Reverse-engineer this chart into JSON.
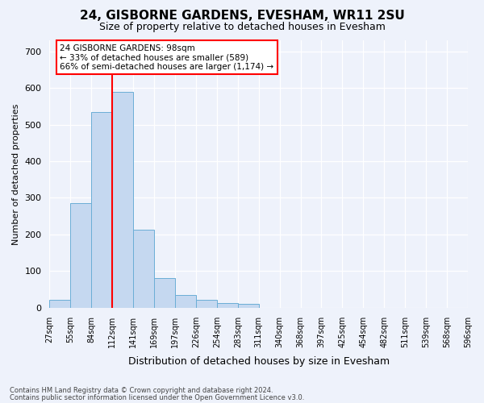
{
  "title1": "24, GISBORNE GARDENS, EVESHAM, WR11 2SU",
  "title2": "Size of property relative to detached houses in Evesham",
  "xlabel": "Distribution of detached houses by size in Evesham",
  "ylabel": "Number of detached properties",
  "bar_values": [
    22,
    285,
    535,
    590,
    212,
    80,
    35,
    22,
    12,
    10,
    0,
    0,
    0,
    0,
    0,
    0,
    0,
    0,
    0,
    0
  ],
  "categories": [
    "27sqm",
    "55sqm",
    "84sqm",
    "112sqm",
    "141sqm",
    "169sqm",
    "197sqm",
    "226sqm",
    "254sqm",
    "283sqm",
    "311sqm",
    "340sqm",
    "368sqm",
    "397sqm",
    "425sqm",
    "454sqm",
    "482sqm",
    "511sqm",
    "539sqm",
    "568sqm",
    "596sqm"
  ],
  "bar_color": "#c5d8f0",
  "bar_edge_color": "#6baed6",
  "vline_color": "red",
  "annotation_text": "24 GISBORNE GARDENS: 98sqm\n← 33% of detached houses are smaller (589)\n66% of semi-detached houses are larger (1,174) →",
  "annotation_box_color": "white",
  "annotation_box_edge": "red",
  "ylim": [
    0,
    730
  ],
  "yticks": [
    0,
    100,
    200,
    300,
    400,
    500,
    600,
    700
  ],
  "footer1": "Contains HM Land Registry data © Crown copyright and database right 2024.",
  "footer2": "Contains public sector information licensed under the Open Government Licence v3.0.",
  "bg_color": "#eef2fb",
  "plot_bg_color": "#eef2fb",
  "title1_fontsize": 11,
  "title2_fontsize": 9
}
